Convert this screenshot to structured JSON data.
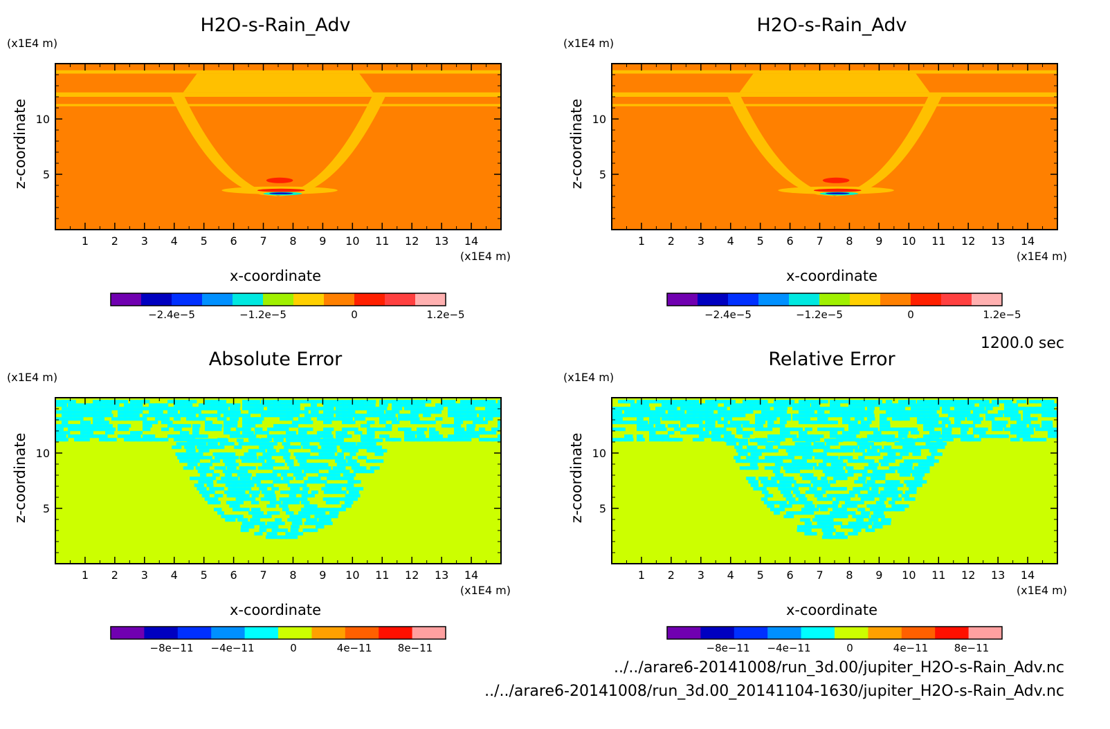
{
  "time_label": "1200.0 sec",
  "files": [
    "../../arare6-20141008/run_3d.00/jupiter_H2O-s-Rain_Adv.nc",
    "../../arare6-20141008/run_3d.00_20141104-1630/jupiter_H2O-s-Rain_Adv.nc"
  ],
  "chart_data": [
    {
      "type": "heatmap",
      "title": "H2O-s-Rain_Adv",
      "xlabel": "x-coordinate",
      "ylabel": "z-coordinate",
      "x_unit": "(x1E4 m)",
      "y_unit": "(x1E4 m)",
      "xlim": [
        0,
        15
      ],
      "ylim": [
        0,
        15
      ],
      "x_ticks": [
        1,
        2,
        3,
        4,
        5,
        6,
        7,
        8,
        9,
        10,
        11,
        12,
        13,
        14
      ],
      "y_ticks": [
        5,
        10
      ],
      "background": "#ff8000",
      "features": [
        {
          "shape": "band",
          "y_range": [
            14.1,
            14.4
          ],
          "color": "#ffc000"
        },
        {
          "shape": "band",
          "y_range": [
            11.15,
            11.35
          ],
          "color": "#ffc000"
        },
        {
          "shape": "band",
          "y_range": [
            12.0,
            12.4
          ],
          "color": "#ffc000"
        },
        {
          "shape": "bowl",
          "x_range": [
            3.9,
            11.1
          ],
          "y_top": 12.0,
          "y_bottom": 3.0,
          "color": "#ffc000"
        },
        {
          "shape": "cap",
          "x_range": [
            4.3,
            10.7
          ],
          "y_range": [
            12.4,
            14.1
          ],
          "color": "#ffc000"
        },
        {
          "shape": "blob",
          "x_range": [
            5.6,
            9.5
          ],
          "y_range": [
            3.2,
            3.9
          ],
          "color": "#ffc000"
        },
        {
          "shape": "blob",
          "x_range": [
            7.1,
            8.0
          ],
          "y_range": [
            4.2,
            4.7
          ],
          "color": "#ff2000"
        },
        {
          "shape": "blob",
          "x_range": [
            6.8,
            8.4
          ],
          "y_range": [
            3.4,
            3.7
          ],
          "color": "#ff2000"
        },
        {
          "shape": "blob",
          "x_range": [
            7.0,
            8.3
          ],
          "y_range": [
            3.1,
            3.4
          ],
          "color": "#00f0c8"
        },
        {
          "shape": "blob",
          "x_range": [
            7.2,
            8.0
          ],
          "y_range": [
            3.2,
            3.35
          ],
          "color": "#0000c8"
        }
      ],
      "colorbar": {
        "colors": [
          "#7000b0",
          "#0000c0",
          "#0030ff",
          "#0090ff",
          "#00e8e0",
          "#a0f000",
          "#ffd000",
          "#ff8000",
          "#ff2000",
          "#ff4040",
          "#ffb0b0"
        ],
        "min": -3.2e-05,
        "max": 1.2e-05,
        "tick_values": [
          -2.4e-05,
          -1.2e-05,
          0,
          1.2e-05
        ],
        "tick_labels": [
          "−2.4e−5",
          "−1.2e−5",
          "0",
          "1.2e−5"
        ]
      }
    },
    {
      "type": "heatmap",
      "title": "H2O-s-Rain_Adv",
      "xlabel": "x-coordinate",
      "ylabel": "z-coordinate",
      "x_unit": "(x1E4 m)",
      "y_unit": "(x1E4 m)",
      "xlim": [
        0,
        15
      ],
      "ylim": [
        0,
        15
      ],
      "x_ticks": [
        1,
        2,
        3,
        4,
        5,
        6,
        7,
        8,
        9,
        10,
        11,
        12,
        13,
        14
      ],
      "y_ticks": [
        5,
        10
      ],
      "background": "#ff8000",
      "features": [
        {
          "shape": "band",
          "y_range": [
            14.1,
            14.4
          ],
          "color": "#ffc000"
        },
        {
          "shape": "band",
          "y_range": [
            11.15,
            11.35
          ],
          "color": "#ffc000"
        },
        {
          "shape": "band",
          "y_range": [
            12.0,
            12.4
          ],
          "color": "#ffc000"
        },
        {
          "shape": "bowl",
          "x_range": [
            3.9,
            11.1
          ],
          "y_top": 12.0,
          "y_bottom": 3.0,
          "color": "#ffc000"
        },
        {
          "shape": "cap",
          "x_range": [
            4.3,
            10.7
          ],
          "y_range": [
            12.4,
            14.1
          ],
          "color": "#ffc000"
        },
        {
          "shape": "blob",
          "x_range": [
            5.6,
            9.5
          ],
          "y_range": [
            3.2,
            3.9
          ],
          "color": "#ffc000"
        },
        {
          "shape": "blob",
          "x_range": [
            7.1,
            8.0
          ],
          "y_range": [
            4.2,
            4.7
          ],
          "color": "#ff2000"
        },
        {
          "shape": "blob",
          "x_range": [
            6.8,
            8.4
          ],
          "y_range": [
            3.4,
            3.7
          ],
          "color": "#ff2000"
        },
        {
          "shape": "blob",
          "x_range": [
            7.0,
            8.3
          ],
          "y_range": [
            3.1,
            3.4
          ],
          "color": "#00f0c8"
        },
        {
          "shape": "blob",
          "x_range": [
            7.2,
            8.0
          ],
          "y_range": [
            3.2,
            3.35
          ],
          "color": "#0000c8"
        }
      ],
      "colorbar": {
        "colors": [
          "#7000b0",
          "#0000c0",
          "#0030ff",
          "#0090ff",
          "#00e8e0",
          "#a0f000",
          "#ffd000",
          "#ff8000",
          "#ff2000",
          "#ff4040",
          "#ffb0b0"
        ],
        "min": -3.2e-05,
        "max": 1.2e-05,
        "tick_values": [
          -2.4e-05,
          -1.2e-05,
          0,
          1.2e-05
        ],
        "tick_labels": [
          "−2.4e−5",
          "−1.2e−5",
          "0",
          "1.2e−5"
        ]
      }
    },
    {
      "type": "heatmap",
      "title": "Absolute Error",
      "xlabel": "x-coordinate",
      "ylabel": "z-coordinate",
      "x_unit": "(x1E4 m)",
      "y_unit": "(x1E4 m)",
      "xlim": [
        0,
        15
      ],
      "ylim": [
        0,
        15
      ],
      "x_ticks": [
        1,
        2,
        3,
        4,
        5,
        6,
        7,
        8,
        9,
        10,
        11,
        12,
        13,
        14
      ],
      "y_ticks": [
        5,
        10
      ],
      "background": "#ccff00",
      "features": [
        {
          "shape": "noise_band",
          "y_range": [
            11.3,
            14.8
          ],
          "color": "#00ffff"
        },
        {
          "shape": "noise_bowl",
          "x_range": [
            3.8,
            11.1
          ],
          "y_top": 11.3,
          "y_bottom": 2.4,
          "color": "#00ffff"
        }
      ],
      "colorbar": {
        "colors": [
          "#7000b0",
          "#0000c0",
          "#0030ff",
          "#0090ff",
          "#00ffff",
          "#ccff00",
          "#ffa000",
          "#ff6000",
          "#ff1000",
          "#ffa0a0"
        ],
        "min": -1.2e-10,
        "max": 1e-10,
        "tick_values": [
          -8e-11,
          -4e-11,
          0,
          4e-11,
          8e-11
        ],
        "tick_labels": [
          "−8e−11",
          "−4e−11",
          "0",
          "4e−11",
          "8e−11"
        ]
      }
    },
    {
      "type": "heatmap",
      "title": "Relative Error",
      "xlabel": "x-coordinate",
      "ylabel": "z-coordinate",
      "x_unit": "(x1E4 m)",
      "y_unit": "(x1E4 m)",
      "xlim": [
        0,
        15
      ],
      "ylim": [
        0,
        15
      ],
      "x_ticks": [
        1,
        2,
        3,
        4,
        5,
        6,
        7,
        8,
        9,
        10,
        11,
        12,
        13,
        14
      ],
      "y_ticks": [
        5,
        10
      ],
      "background": "#ccff00",
      "features": [
        {
          "shape": "noise_band",
          "y_range": [
            11.3,
            14.8
          ],
          "color": "#00ffff"
        },
        {
          "shape": "noise_bowl",
          "x_range": [
            3.8,
            11.1
          ],
          "y_top": 11.3,
          "y_bottom": 2.4,
          "color": "#00ffff"
        }
      ],
      "colorbar": {
        "colors": [
          "#7000b0",
          "#0000c0",
          "#0030ff",
          "#0090ff",
          "#00ffff",
          "#ccff00",
          "#ffa000",
          "#ff6000",
          "#ff1000",
          "#ffa0a0"
        ],
        "min": -1.2e-10,
        "max": 1e-10,
        "tick_values": [
          -8e-11,
          -4e-11,
          0,
          4e-11,
          8e-11
        ],
        "tick_labels": [
          "−8e−11",
          "−4e−11",
          "0",
          "4e−11",
          "8e−11"
        ]
      }
    }
  ]
}
